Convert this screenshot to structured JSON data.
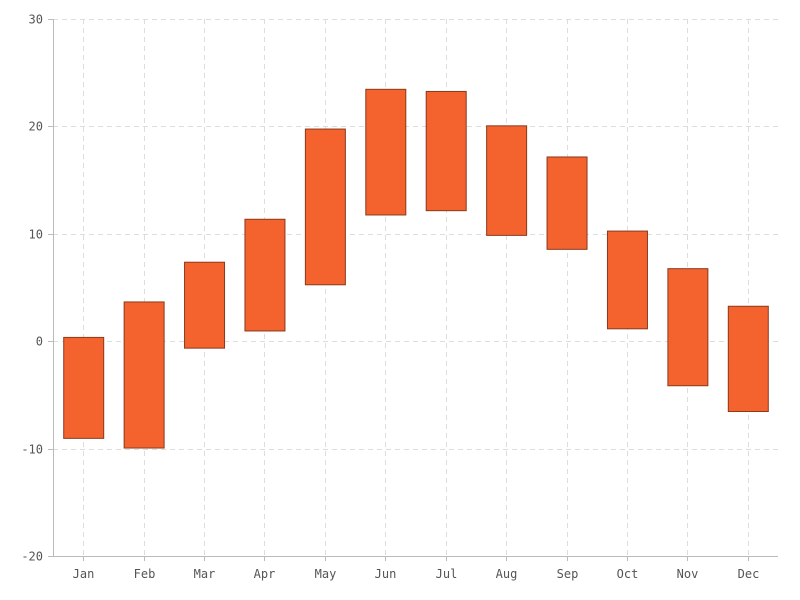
{
  "chart_data": {
    "type": "bar",
    "subtype": "floating-range",
    "title": "",
    "xlabel": "",
    "ylabel": "",
    "categories": [
      "Jan",
      "Feb",
      "Mar",
      "Apr",
      "May",
      "Jun",
      "Jul",
      "Aug",
      "Sep",
      "Oct",
      "Nov",
      "Dec"
    ],
    "series": [
      {
        "low": [
          -9.0,
          -9.9,
          -0.6,
          1.0,
          5.3,
          11.8,
          12.2,
          9.9,
          8.6,
          1.2,
          -4.1,
          -6.5
        ],
        "high": [
          0.4,
          3.7,
          7.4,
          11.4,
          19.8,
          23.5,
          23.3,
          20.1,
          17.2,
          10.3,
          6.8,
          3.3
        ],
        "color": "#f4622e",
        "stroke": "#8a3a1c"
      }
    ],
    "ylim": [
      -20,
      30
    ],
    "yticks": [
      -20,
      -10,
      0,
      10,
      20,
      30
    ],
    "grid": true,
    "legend": "none"
  }
}
